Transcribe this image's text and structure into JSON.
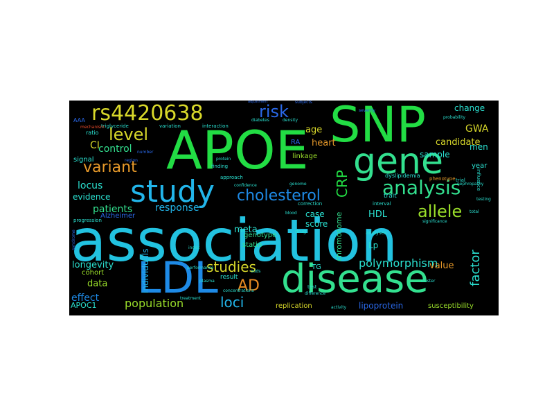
{
  "words": [
    {
      "text": "association",
      "color": "#22c2e0"
    },
    {
      "text": "APOE",
      "color": "#22dd44"
    },
    {
      "text": "SNP",
      "color": "#22dd44"
    },
    {
      "text": "gene",
      "color": "#33e08f"
    },
    {
      "text": "disease",
      "color": "#33e08f"
    },
    {
      "text": "LDL",
      "color": "#1e8ae6"
    },
    {
      "text": "study",
      "color": "#22b5ea"
    },
    {
      "text": "rs4420638",
      "color": "#d8d82a"
    },
    {
      "text": "analysis",
      "color": "#33e08f"
    },
    {
      "text": "cholesterol",
      "color": "#1e8ae6"
    },
    {
      "text": "risk",
      "color": "#2a68e8"
    },
    {
      "text": "level",
      "color": "#d8d82a"
    },
    {
      "text": "variant",
      "color": "#e89a2a"
    },
    {
      "text": "allele",
      "color": "#9ade2a"
    },
    {
      "text": "studies",
      "color": "#d8d82a"
    },
    {
      "text": "AD",
      "color": "#e88a22"
    },
    {
      "text": "loci",
      "color": "#22b5ea"
    },
    {
      "text": "CRP",
      "color": "#22dd44"
    },
    {
      "text": "polymorphism",
      "color": "#2ae0d0"
    },
    {
      "text": "population",
      "color": "#9ade2a"
    },
    {
      "text": "factor",
      "color": "#2ae0d0"
    },
    {
      "text": "control",
      "color": "#33e08f"
    },
    {
      "text": "locus",
      "color": "#2ae0d0"
    },
    {
      "text": "patients",
      "color": "#33e08f"
    },
    {
      "text": "response",
      "color": "#22b5ea"
    },
    {
      "text": "age",
      "color": "#d8d82a"
    },
    {
      "text": "heart",
      "color": "#e89a2a"
    },
    {
      "text": "GWA",
      "color": "#d8d82a"
    },
    {
      "text": "CI",
      "color": "#d8d82a"
    },
    {
      "text": "evidence",
      "color": "#2ae0d0"
    },
    {
      "text": "meta",
      "color": "#2ae0d0"
    },
    {
      "text": "HDL",
      "color": "#2ae0d0"
    },
    {
      "text": "Lp",
      "color": "#2ae0d0"
    },
    {
      "text": "value",
      "color": "#e89a2a"
    },
    {
      "text": "effect",
      "color": "#1e8ae6"
    },
    {
      "text": "data",
      "color": "#9ade2a"
    },
    {
      "text": "longevity",
      "color": "#2ae0d0"
    },
    {
      "text": "individuals",
      "color": "#22b5ea"
    },
    {
      "text": "chromosome",
      "color": "#33e08f"
    },
    {
      "text": "candidate",
      "color": "#d8d82a"
    },
    {
      "text": "sample",
      "color": "#2ae0d0"
    },
    {
      "text": "change",
      "color": "#2ae0d0"
    },
    {
      "text": "men",
      "color": "#2ae0d0"
    },
    {
      "text": "case",
      "color": "#2ae0d0"
    },
    {
      "text": "score",
      "color": "#2ae0d0"
    },
    {
      "text": "APOC1",
      "color": "#2ae0d0"
    },
    {
      "text": "lipoprotein",
      "color": "#2a68e8"
    },
    {
      "text": "susceptibility",
      "color": "#9ade2a"
    },
    {
      "text": "replication",
      "color": "#d8d82a"
    },
    {
      "text": "cohort",
      "color": "#9ade2a"
    },
    {
      "text": "genotype",
      "color": "#33e08f"
    },
    {
      "text": "statin",
      "color": "#33e08f"
    },
    {
      "text": "TG",
      "color": "#2ae0d0"
    },
    {
      "text": "result",
      "color": "#2ae0d0"
    },
    {
      "text": "linkage",
      "color": "#9ade2a"
    },
    {
      "text": "RA",
      "color": "#2a68e8"
    },
    {
      "text": "Alzheimer",
      "color": "#2a68e8"
    },
    {
      "text": "signal",
      "color": "#2ae0d0"
    },
    {
      "text": "ratio",
      "color": "#2ae0d0"
    },
    {
      "text": "AAA",
      "color": "#2a68e8"
    },
    {
      "text": "trait",
      "color": "#2ae0d0"
    },
    {
      "text": "year",
      "color": "#2ae0d0"
    },
    {
      "text": "dyslipidemia",
      "color": "#2ae0d0"
    },
    {
      "text": "triglyceride",
      "color": "#2ae0d0"
    },
    {
      "text": "variation",
      "color": "#2ae0d0"
    },
    {
      "text": "interaction",
      "color": "#2ae0d0"
    },
    {
      "text": "diabetes",
      "color": "#2ae0d0"
    },
    {
      "text": "density",
      "color": "#2ae0d0"
    },
    {
      "text": "approach",
      "color": "#2ae0d0"
    },
    {
      "text": "confidence",
      "color": "#2ae0d0"
    },
    {
      "text": "finding",
      "color": "#2ae0d0"
    },
    {
      "text": "interval",
      "color": "#2ae0d0"
    },
    {
      "text": "correction",
      "color": "#2ae0d0"
    },
    {
      "text": "drug",
      "color": "#2ae0d0"
    },
    {
      "text": "index",
      "color": "#2ae0d0"
    },
    {
      "text": "analyses",
      "color": "#2ae0d0"
    },
    {
      "text": "concentrations",
      "color": "#2ae0d0"
    },
    {
      "text": "treatment",
      "color": "#2ae0d0"
    },
    {
      "text": "activity",
      "color": "#2ae0d0"
    },
    {
      "text": "performance",
      "color": "#2ae0d0"
    },
    {
      "text": "trial",
      "color": "#2ae0d0"
    },
    {
      "text": "phenotype",
      "color": "#e89a2a"
    },
    {
      "text": "test",
      "color": "#2ae0d0"
    },
    {
      "text": "difference",
      "color": "#2ae0d0"
    },
    {
      "text": "subjects",
      "color": "#2a68e8"
    },
    {
      "text": "region",
      "color": "#2a68e8"
    },
    {
      "text": "number",
      "color": "#2a68e8"
    },
    {
      "text": "odds",
      "color": "#2ae0d0"
    },
    {
      "text": "plasma",
      "color": "#2ae0d0"
    },
    {
      "text": "influence",
      "color": "#2ae0d0"
    },
    {
      "text": "testing",
      "color": "#2ae0d0"
    },
    {
      "text": "probability",
      "color": "#2ae0d0"
    },
    {
      "text": "severity",
      "color": "#2a68e8"
    },
    {
      "text": "adjustment",
      "color": "#2a68e8"
    },
    {
      "text": "nephropathy",
      "color": "#2ae0d0"
    },
    {
      "text": "progression",
      "color": "#2ae0d0"
    },
    {
      "text": "syndrome",
      "color": "#2a68e8"
    },
    {
      "text": "blood",
      "color": "#2ae0d0"
    },
    {
      "text": "cluster",
      "color": "#2ae0d0"
    },
    {
      "text": "genome",
      "color": "#2ae0d0"
    },
    {
      "text": "mechanism",
      "color": "#e84a2a"
    },
    {
      "text": "protein",
      "color": "#2ae0d0"
    },
    {
      "text": "total",
      "color": "#2ae0d0"
    },
    {
      "text": "significance",
      "color": "#2ae0d0"
    }
  ]
}
